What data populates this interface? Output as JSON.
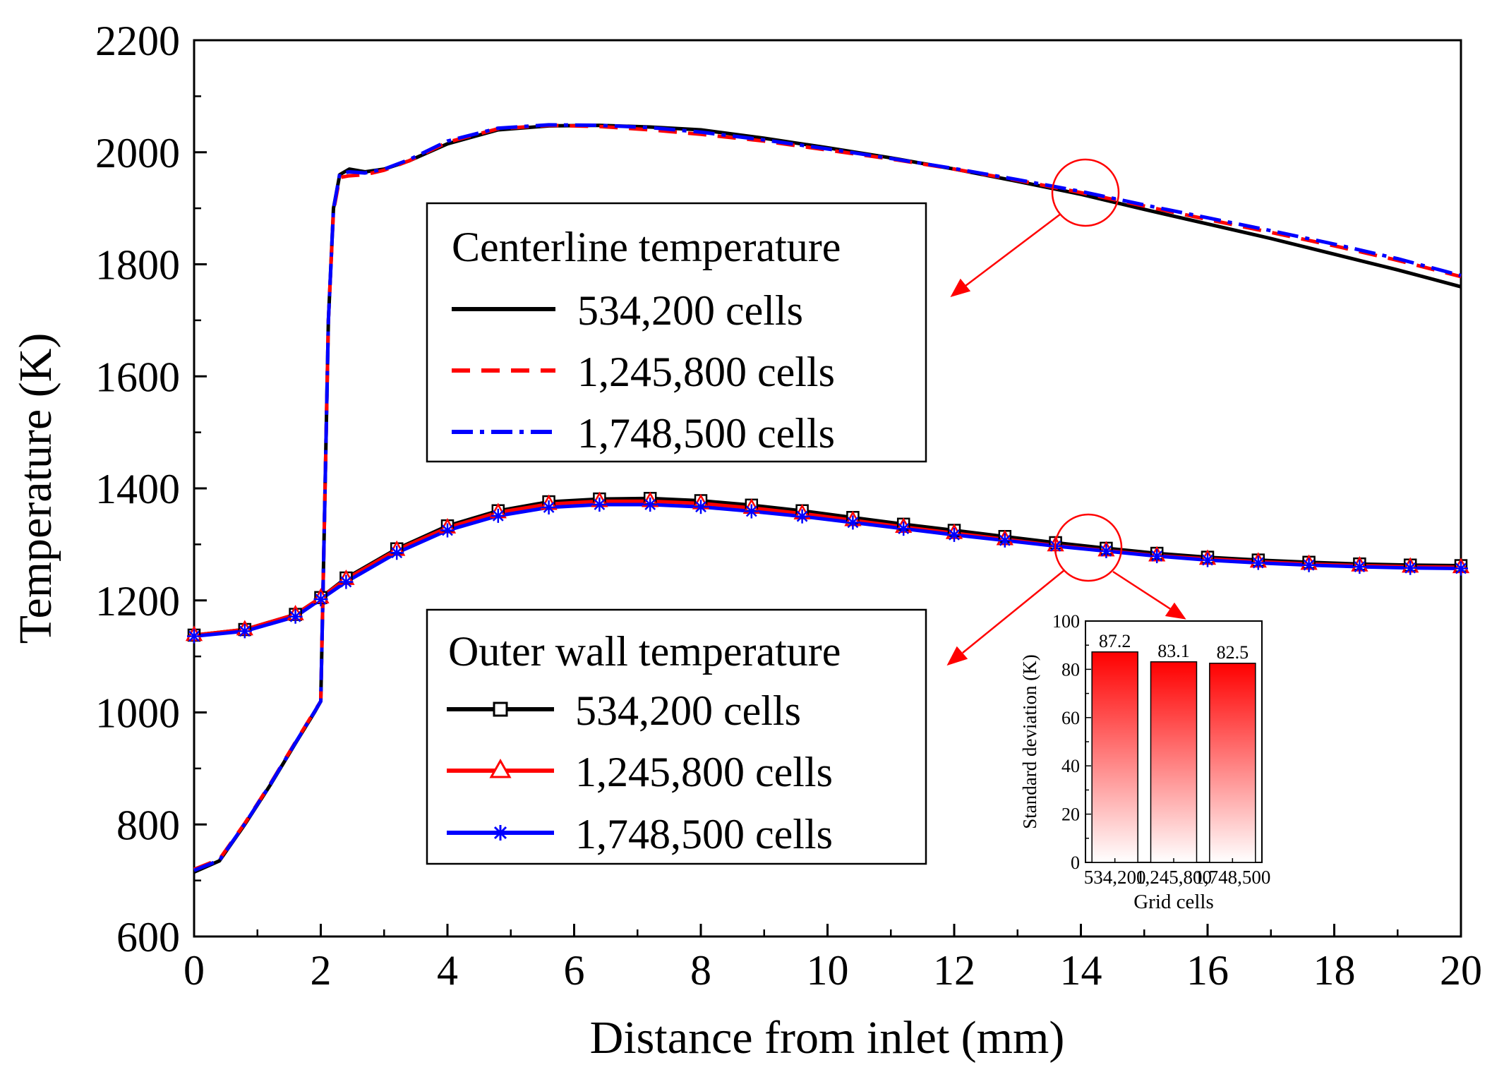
{
  "colors": {
    "black": "#000000",
    "red": "#ff0000",
    "blue": "#0000ff",
    "annotation": "#ff0000",
    "bar_top": "#ff0000",
    "bar_bottom": "#ffffff"
  },
  "chart_data": [
    {
      "type": "line",
      "xlabel": "Distance from inlet (mm)",
      "ylabel": "Temperature (K)",
      "xlim": [
        0,
        20
      ],
      "ylim": [
        600,
        2200
      ],
      "xticks": [
        0,
        2,
        4,
        6,
        8,
        10,
        12,
        14,
        16,
        18,
        20
      ],
      "yticks": [
        600,
        800,
        1000,
        1200,
        1400,
        1600,
        1800,
        2000,
        2200
      ],
      "grid": false,
      "legends": [
        {
          "title": "Centerline temperature",
          "placement": "center-right, upper",
          "entries": [
            "534,200 cells",
            "1,245,800 cells",
            "1,748,500 cells"
          ]
        },
        {
          "title": "Outer wall temperature",
          "placement": "center-right, lower",
          "entries": [
            "534,200 cells",
            "1,245,800 cells",
            "1,748,500 cells"
          ]
        }
      ],
      "series": [
        {
          "name": "Centerline 534,200 cells",
          "group": "centerline",
          "color": "#000000",
          "line": "solid",
          "marker": "none",
          "x": [
            0,
            0.4,
            0.8,
            1.2,
            1.6,
            1.9,
            2.0,
            2.05,
            2.12,
            2.2,
            2.3,
            2.45,
            2.7,
            3.0,
            3.4,
            4.0,
            4.8,
            5.6,
            6.4,
            7.2,
            8.0,
            9.0,
            10.0,
            11.0,
            12.0,
            13.0,
            14.0,
            15.0,
            16.0,
            17.0,
            18.0,
            19.0,
            20.0
          ],
          "y": [
            715,
            735,
            800,
            870,
            945,
            1000,
            1020,
            1300,
            1700,
            1900,
            1960,
            1970,
            1965,
            1970,
            1985,
            2015,
            2040,
            2047,
            2048,
            2045,
            2040,
            2025,
            2008,
            1990,
            1970,
            1948,
            1925,
            1898,
            1872,
            1846,
            1818,
            1790,
            1760
          ]
        },
        {
          "name": "Centerline 1,245,800 cells",
          "group": "centerline",
          "color": "#ff0000",
          "line": "dash",
          "marker": "none",
          "x": [
            0,
            0.4,
            0.8,
            1.2,
            1.6,
            1.9,
            2.0,
            2.05,
            2.12,
            2.2,
            2.3,
            2.45,
            2.7,
            3.0,
            3.4,
            4.0,
            4.8,
            5.6,
            6.4,
            7.2,
            8.0,
            9.0,
            10.0,
            11.0,
            12.0,
            13.0,
            14.0,
            15.0,
            16.0,
            17.0,
            18.0,
            19.0,
            20.0
          ],
          "y": [
            720,
            738,
            802,
            872,
            947,
            1002,
            1020,
            1300,
            1700,
            1895,
            1955,
            1958,
            1960,
            1968,
            1985,
            2018,
            2042,
            2048,
            2046,
            2040,
            2032,
            2020,
            2004,
            1988,
            1970,
            1950,
            1928,
            1904,
            1880,
            1857,
            1833,
            1807,
            1778
          ]
        },
        {
          "name": "Centerline 1,748,500 cells",
          "group": "centerline",
          "color": "#0000ff",
          "line": "dashdot",
          "marker": "none",
          "x": [
            0,
            0.4,
            0.8,
            1.2,
            1.6,
            1.9,
            2.0,
            2.05,
            2.12,
            2.2,
            2.3,
            2.45,
            2.7,
            3.0,
            3.4,
            4.0,
            4.8,
            5.6,
            6.4,
            7.2,
            8.0,
            9.0,
            10.0,
            11.0,
            12.0,
            13.0,
            14.0,
            15.0,
            16.0,
            17.0,
            18.0,
            19.0,
            20.0
          ],
          "y": [
            718,
            736,
            801,
            871,
            946,
            1001,
            1020,
            1300,
            1700,
            1898,
            1962,
            1965,
            1963,
            1970,
            1987,
            2020,
            2043,
            2049,
            2048,
            2044,
            2036,
            2022,
            2006,
            1989,
            1971,
            1951,
            1930,
            1906,
            1883,
            1860,
            1836,
            1810,
            1780
          ]
        },
        {
          "name": "Outer wall 534,200 cells",
          "group": "outer_wall",
          "color": "#000000",
          "line": "solid",
          "marker": "square",
          "x": [
            0,
            0.8,
            1.6,
            2.0,
            2.4,
            3.2,
            4.0,
            4.8,
            5.6,
            6.4,
            7.2,
            8.0,
            8.8,
            9.6,
            10.4,
            11.2,
            12.0,
            12.8,
            13.6,
            14.4,
            15.2,
            16.0,
            16.8,
            17.6,
            18.4,
            19.2,
            20.0
          ],
          "y": [
            1138,
            1148,
            1175,
            1205,
            1240,
            1292,
            1333,
            1360,
            1376,
            1381,
            1382,
            1378,
            1370,
            1360,
            1348,
            1336,
            1325,
            1314,
            1303,
            1293,
            1284,
            1277,
            1272,
            1268,
            1265,
            1263,
            1262
          ]
        },
        {
          "name": "Outer wall 1,245,800 cells",
          "group": "outer_wall",
          "color": "#ff0000",
          "line": "solid",
          "marker": "triangle",
          "x": [
            0,
            0.8,
            1.6,
            2.0,
            2.4,
            3.2,
            4.0,
            4.8,
            5.6,
            6.4,
            7.2,
            8.0,
            8.8,
            9.6,
            10.4,
            11.2,
            12.0,
            12.8,
            13.6,
            14.4,
            15.2,
            16.0,
            16.8,
            17.6,
            18.4,
            19.2,
            20.0
          ],
          "y": [
            1138,
            1148,
            1175,
            1205,
            1238,
            1290,
            1330,
            1357,
            1372,
            1377,
            1377,
            1373,
            1365,
            1355,
            1343,
            1331,
            1320,
            1309,
            1298,
            1289,
            1280,
            1274,
            1269,
            1265,
            1262,
            1260,
            1259
          ]
        },
        {
          "name": "Outer wall 1,748,500 cells",
          "group": "outer_wall",
          "color": "#0000ff",
          "line": "solid",
          "marker": "asterisk",
          "x": [
            0,
            0.8,
            1.6,
            2.0,
            2.4,
            3.2,
            4.0,
            4.8,
            5.6,
            6.4,
            7.2,
            8.0,
            8.8,
            9.6,
            10.4,
            11.2,
            12.0,
            12.8,
            13.6,
            14.4,
            15.2,
            16.0,
            16.8,
            17.6,
            18.4,
            19.2,
            20.0
          ],
          "y": [
            1136,
            1145,
            1171,
            1202,
            1233,
            1285,
            1325,
            1351,
            1366,
            1371,
            1371,
            1367,
            1359,
            1350,
            1339,
            1328,
            1317,
            1307,
            1297,
            1288,
            1279,
            1272,
            1267,
            1263,
            1260,
            1258,
            1257
          ]
        }
      ]
    },
    {
      "type": "bar",
      "title": "",
      "xlabel": "Grid cells",
      "ylabel": "Standard deviation (K)",
      "categories": [
        "534,200",
        "1,245,800",
        "1,748,500"
      ],
      "values": [
        87.2,
        83.1,
        82.5
      ],
      "data_labels": [
        "87.2",
        "83.1",
        "82.5"
      ],
      "ylim": [
        0,
        100
      ],
      "yticks": [
        0,
        20,
        40,
        60,
        80,
        100
      ],
      "placement": "inset, lower-right"
    }
  ]
}
